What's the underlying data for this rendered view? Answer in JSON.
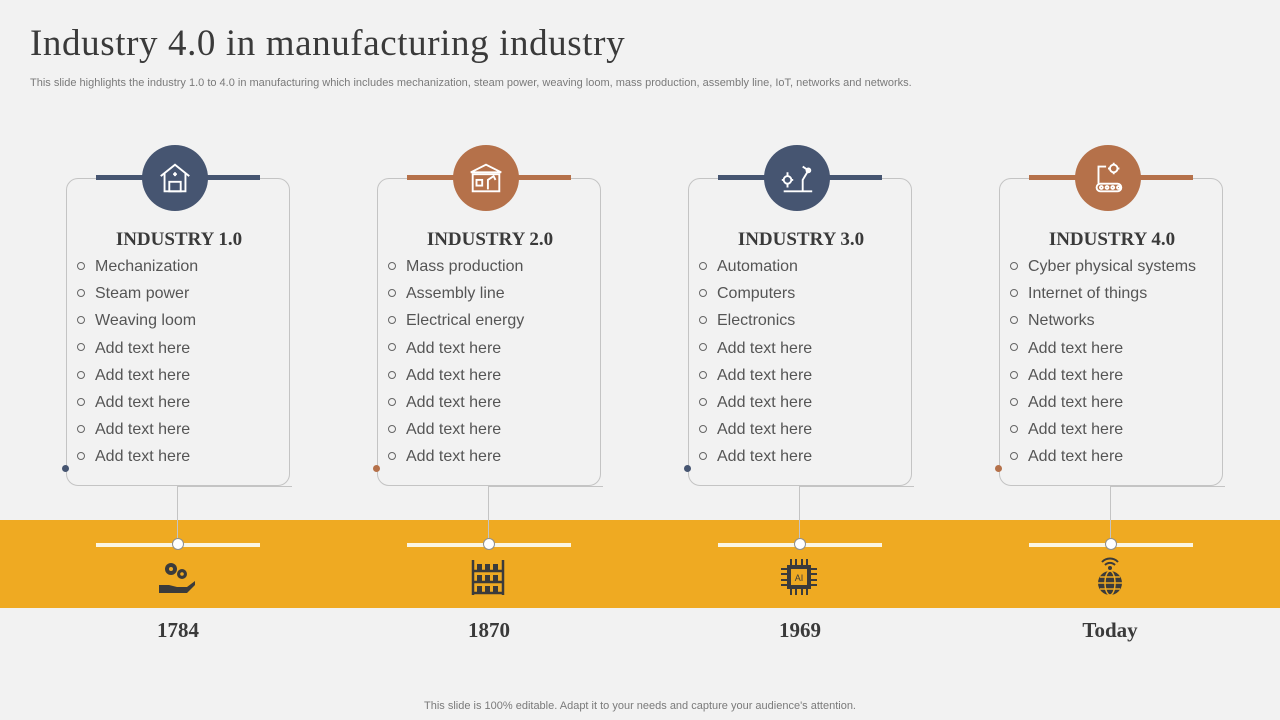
{
  "title": "Industry 4.0 in manufacturing industry",
  "subtitle": "This slide highlights the industry 1.0 to  4.0 in manufacturing which includes mechanization, steam power, weaving loom, mass production, assembly line, IoT, networks and networks.",
  "colors": {
    "navy": "#465571",
    "copper": "#b5714a",
    "gold": "#efaa22",
    "text": "#3a3a3a"
  },
  "columns": [
    {
      "title": "INDUSTRY 1.0",
      "icon": "warehouse-icon",
      "items": [
        "Mechanization",
        "Steam power",
        "Weaving loom",
        "Add text here",
        "Add text here",
        "Add text here",
        "Add text here",
        "Add text here"
      ],
      "year": "1784",
      "timeline_icon": "gears-hand-icon"
    },
    {
      "title": "INDUSTRY 2.0",
      "icon": "assembly-line-icon",
      "items": [
        "Mass production",
        "Assembly line",
        "Electrical energy",
        "Add text here",
        "Add text here",
        "Add text here",
        "Add text here",
        "Add text here"
      ],
      "year": "1870",
      "timeline_icon": "shelf-rack-icon"
    },
    {
      "title": "INDUSTRY 3.0",
      "icon": "robot-arm-icon",
      "items": [
        "Automation",
        "Computers",
        "Electronics",
        "Add text here",
        "Add text here",
        "Add text here",
        "Add text here",
        "Add text here"
      ],
      "year": "1969",
      "timeline_icon": "ai-chip-icon",
      "chip_label": "AI"
    },
    {
      "title": "INDUSTRY 4.0",
      "icon": "conveyor-robot-icon",
      "items": [
        "Cyber physical systems",
        "Internet  of things",
        "Networks",
        "Add text here",
        "Add text here",
        "Add text here",
        "Add text here",
        "Add text here"
      ],
      "year": "Today",
      "timeline_icon": "globe-signal-icon"
    }
  ],
  "footer": "This slide is 100% editable. Adapt it to your needs and capture your audience's attention."
}
